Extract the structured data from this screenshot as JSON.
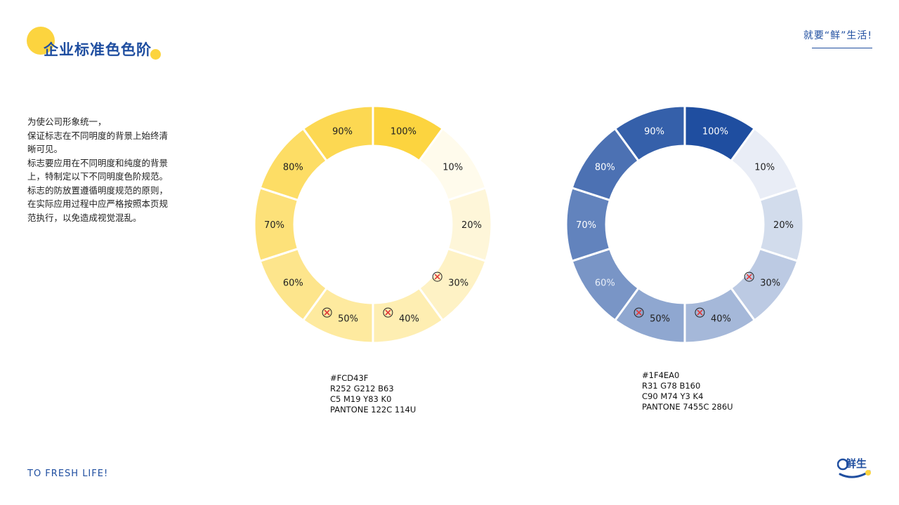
{
  "header": {
    "title": "企业标准色色阶",
    "slogan": "就要“鲜”生活!"
  },
  "description": {
    "lines": [
      "为使公司形象统一，",
      "保证标志在不同明度的背景上始终清",
      "晰可见。",
      "标志要应用在不同明度和纯度的背景",
      "上，特制定以下不同明度色阶规范。",
      "标志的防放置遵循明度规范的原则，",
      "在实际应用过程中应严格按照本页规",
      "范执行，以免造成视觉混乱。"
    ]
  },
  "chart_data": [
    {
      "type": "pie",
      "base_color": "#FCD43F",
      "categories": [
        "100%",
        "10%",
        "20%",
        "30%",
        "40%",
        "50%",
        "60%",
        "70%",
        "80%",
        "90%"
      ],
      "values": [
        1,
        1,
        1,
        1,
        1,
        1,
        1,
        1,
        1,
        1
      ],
      "tint_levels": [
        1.0,
        0.1,
        0.2,
        0.3,
        0.4,
        0.5,
        0.6,
        0.7,
        0.8,
        0.9
      ],
      "not_allowed": [
        "30%",
        "40%",
        "50%"
      ]
    },
    {
      "type": "pie",
      "base_color": "#1F4EA0",
      "categories": [
        "100%",
        "10%",
        "20%",
        "30%",
        "40%",
        "50%",
        "60%",
        "70%",
        "80%",
        "90%"
      ],
      "values": [
        1,
        1,
        1,
        1,
        1,
        1,
        1,
        1,
        1,
        1
      ],
      "tint_levels": [
        1.0,
        0.1,
        0.2,
        0.3,
        0.4,
        0.5,
        0.6,
        0.7,
        0.8,
        0.9
      ],
      "not_allowed": [
        "30%",
        "40%",
        "50%"
      ]
    }
  ],
  "specs": {
    "yellow": [
      "#FCD43F",
      "R252  G212  B63",
      "C5  M19  Y83  K0",
      "PANTONE 122C  114U"
    ],
    "blue": [
      "#1F4EA0",
      "R31  G78  B160",
      "C90  M74  Y3  K4",
      "PANTONE 7455C  286U"
    ]
  },
  "footer": {
    "tagline": "TO FRESH LIFE!",
    "logo_text": "鲜生"
  },
  "colors": {
    "brand_blue": "#1F4EA0",
    "brand_yellow": "#FCD43F",
    "forbidden_mark": "#E03A3A"
  }
}
